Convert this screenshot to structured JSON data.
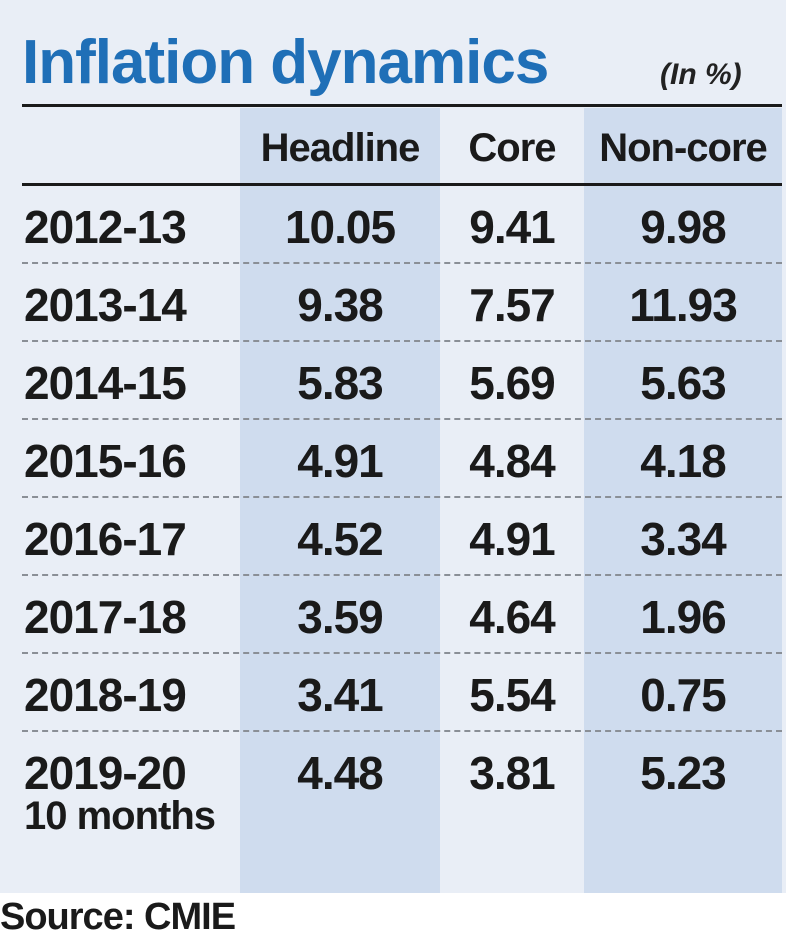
{
  "chart_data": {
    "type": "table",
    "title": "Inflation dynamics",
    "unit": "(In %)",
    "columns": [
      "Headline",
      "Core",
      "Non-core"
    ],
    "rows": [
      {
        "label": "2012-13",
        "sublabel": "",
        "values": [
          "10.05",
          "9.41",
          "9.98"
        ]
      },
      {
        "label": "2013-14",
        "sublabel": "",
        "values": [
          "9.38",
          "7.57",
          "11.93"
        ]
      },
      {
        "label": "2014-15",
        "sublabel": "",
        "values": [
          "5.83",
          "5.69",
          "5.63"
        ]
      },
      {
        "label": "2015-16",
        "sublabel": "",
        "values": [
          "4.91",
          "4.84",
          "4.18"
        ]
      },
      {
        "label": "2016-17",
        "sublabel": "",
        "values": [
          "4.52",
          "4.91",
          "3.34"
        ]
      },
      {
        "label": "2017-18",
        "sublabel": "",
        "values": [
          "3.59",
          "4.64",
          "1.96"
        ]
      },
      {
        "label": "2018-19",
        "sublabel": "",
        "values": [
          "3.41",
          "5.54",
          "0.75"
        ]
      },
      {
        "label": "2019-20",
        "sublabel": "10 months",
        "values": [
          "4.48",
          "3.81",
          "5.23"
        ]
      }
    ],
    "source": "Source: CMIE"
  },
  "colors": {
    "title": "#1f6fb7",
    "panel": "#e9eef6",
    "column_shade": "#cfdcee",
    "text": "#1a1a1a"
  }
}
